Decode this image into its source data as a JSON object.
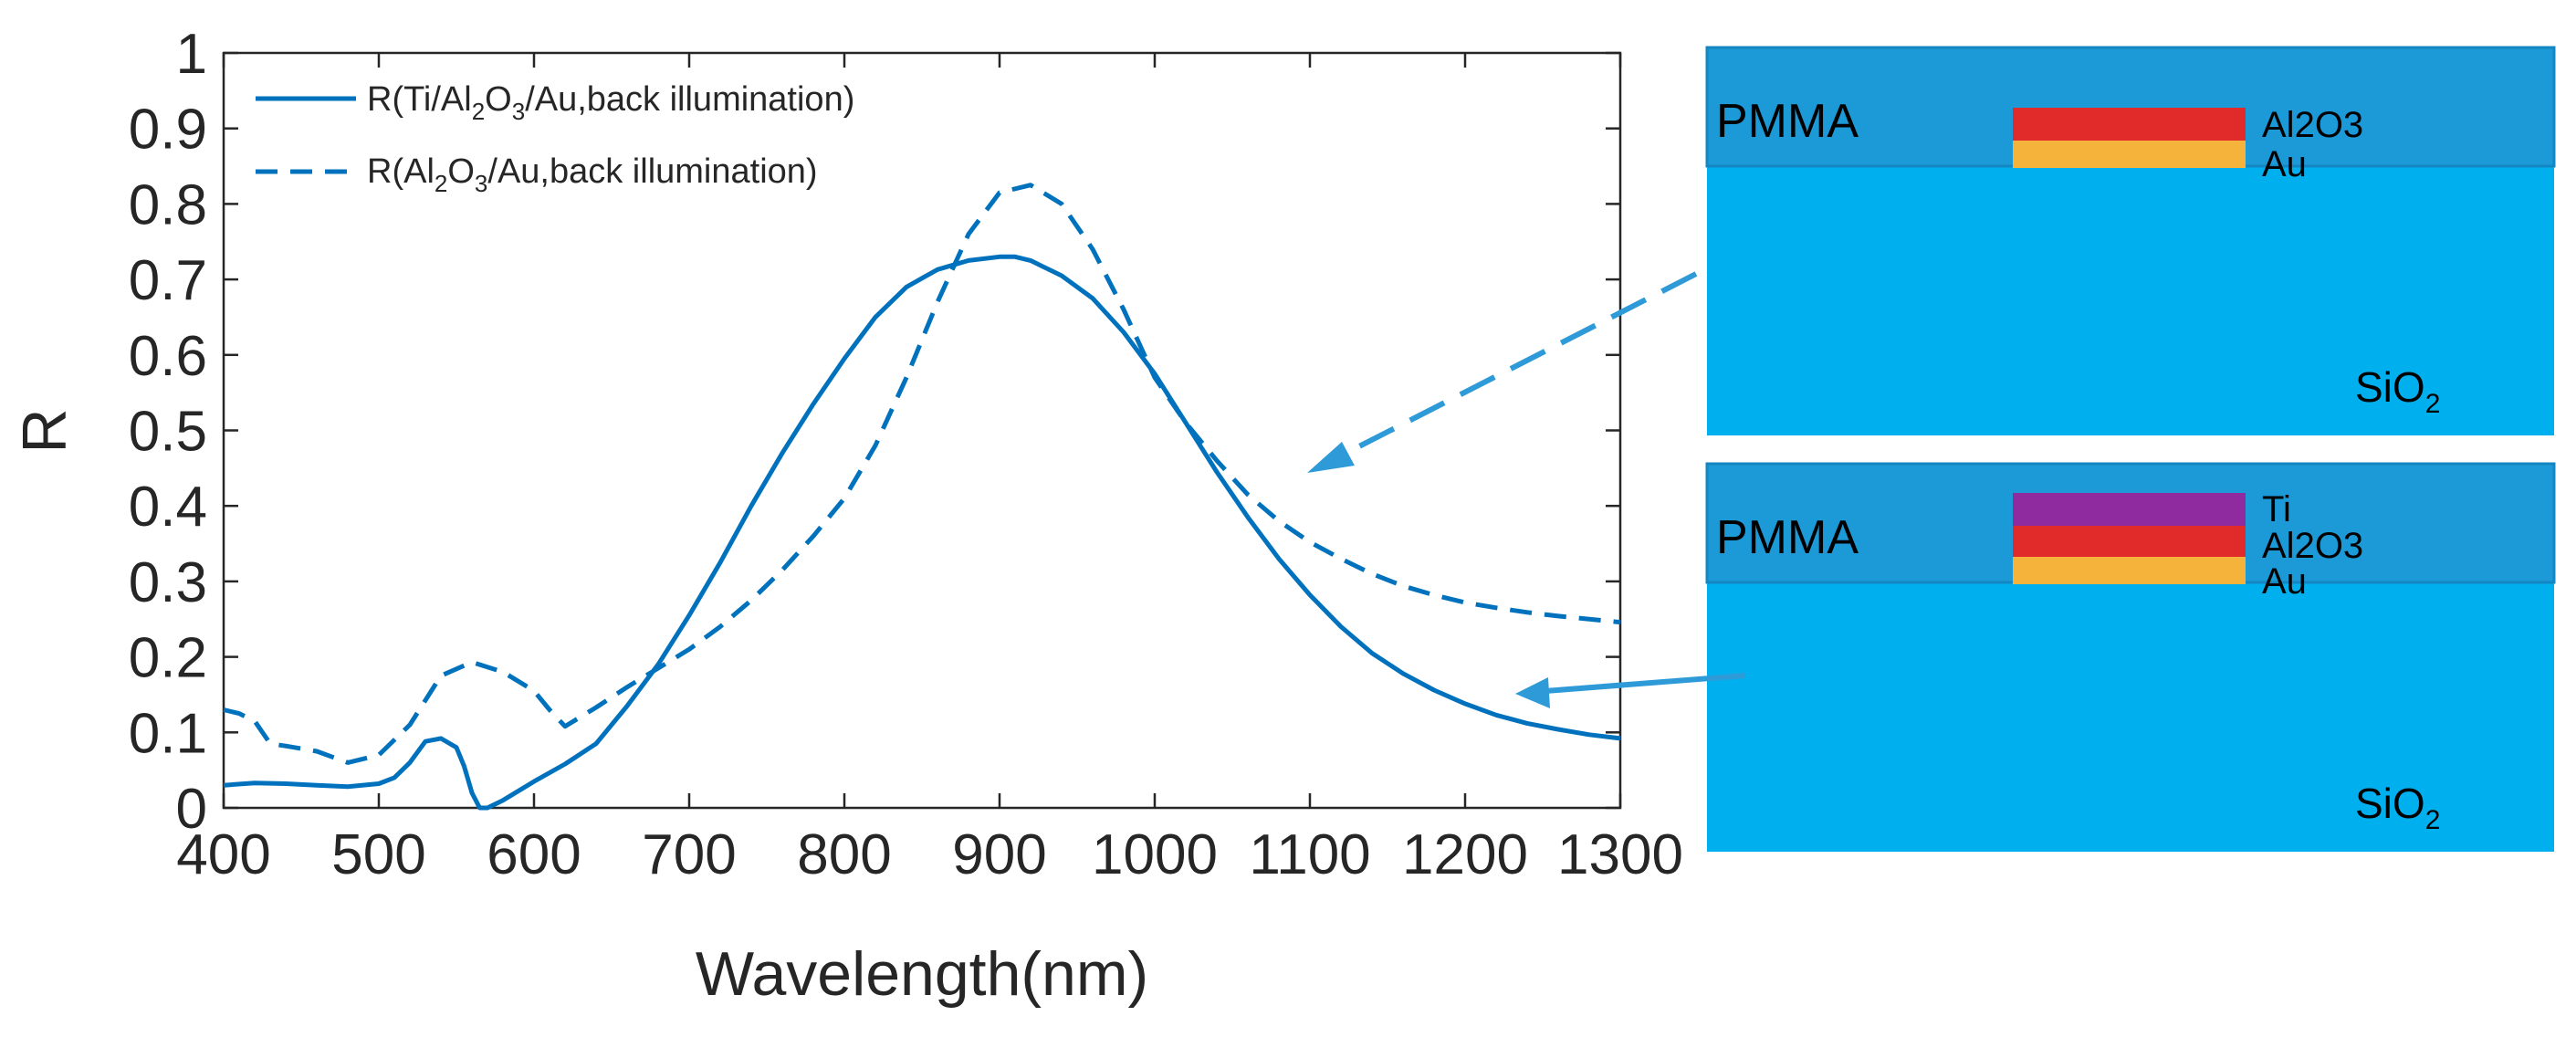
{
  "chart_data": {
    "type": "line",
    "xlabel": "Wavelength(nm)",
    "ylabel": "R",
    "xlim": [
      400,
      1300
    ],
    "ylim": [
      0,
      1
    ],
    "grid": false,
    "legend_position": "top-left",
    "x_ticks": [
      400,
      500,
      600,
      700,
      800,
      900,
      1000,
      1100,
      1200,
      1300
    ],
    "x_tick_labels": [
      "400",
      "500",
      "600",
      "700",
      "800",
      "900",
      "1000",
      "1100",
      "1200",
      "1300"
    ],
    "y_ticks": [
      0,
      0.1,
      0.2,
      0.3,
      0.4,
      0.5,
      0.6,
      0.7,
      0.8,
      0.9,
      1
    ],
    "y_tick_labels": [
      "0",
      "0.1",
      "0.2",
      "0.3",
      "0.4",
      "0.5",
      "0.6",
      "0.7",
      "0.8",
      "0.9",
      "1"
    ],
    "series": [
      {
        "name": "R(Ti/Al2O3/Au,back illumination)",
        "legend_main": "R(Ti/Al",
        "legend_sub1": "2",
        "legend_mid": "O",
        "legend_sub2": "3",
        "legend_tail": "/Au,back illumination)",
        "style": "solid",
        "color": "#0072BD",
        "x": [
          400,
          420,
          440,
          460,
          480,
          500,
          510,
          520,
          530,
          540,
          550,
          555,
          560,
          565,
          570,
          580,
          600,
          620,
          640,
          660,
          680,
          700,
          720,
          740,
          760,
          780,
          800,
          820,
          840,
          860,
          880,
          900,
          910,
          920,
          940,
          960,
          980,
          1000,
          1020,
          1040,
          1060,
          1080,
          1100,
          1120,
          1140,
          1160,
          1180,
          1200,
          1220,
          1240,
          1260,
          1280,
          1300
        ],
        "y": [
          0.03,
          0.033,
          0.032,
          0.03,
          0.028,
          0.032,
          0.04,
          0.06,
          0.088,
          0.092,
          0.08,
          0.055,
          0.02,
          0.0,
          0.0,
          0.01,
          0.035,
          0.058,
          0.085,
          0.135,
          0.19,
          0.255,
          0.325,
          0.4,
          0.47,
          0.535,
          0.595,
          0.65,
          0.69,
          0.713,
          0.725,
          0.73,
          0.73,
          0.725,
          0.705,
          0.675,
          0.63,
          0.575,
          0.51,
          0.445,
          0.385,
          0.33,
          0.282,
          0.24,
          0.205,
          0.178,
          0.156,
          0.138,
          0.123,
          0.112,
          0.104,
          0.097,
          0.092
        ]
      },
      {
        "name": "R(Al2O3/Au,back illumination)",
        "legend_main": "R(Al",
        "legend_sub1": "2",
        "legend_mid": "O",
        "legend_sub2": "3",
        "legend_tail": "/Au,back illumination)",
        "style": "dashed",
        "color": "#0072BD",
        "x": [
          400,
          410,
          420,
          430,
          440,
          460,
          480,
          500,
          520,
          540,
          560,
          580,
          600,
          610,
          620,
          640,
          660,
          680,
          700,
          720,
          740,
          760,
          780,
          800,
          820,
          840,
          860,
          880,
          900,
          920,
          940,
          960,
          980,
          1000,
          1020,
          1040,
          1060,
          1080,
          1100,
          1120,
          1140,
          1160,
          1180,
          1200,
          1220,
          1240,
          1260,
          1280,
          1300
        ],
        "y": [
          0.13,
          0.125,
          0.115,
          0.085,
          0.082,
          0.075,
          0.06,
          0.07,
          0.11,
          0.175,
          0.193,
          0.18,
          0.155,
          0.13,
          0.108,
          0.133,
          0.16,
          0.185,
          0.21,
          0.24,
          0.275,
          0.315,
          0.36,
          0.41,
          0.48,
          0.57,
          0.67,
          0.76,
          0.815,
          0.825,
          0.8,
          0.74,
          0.66,
          0.57,
          0.51,
          0.46,
          0.415,
          0.38,
          0.352,
          0.33,
          0.31,
          0.294,
          0.282,
          0.272,
          0.265,
          0.259,
          0.254,
          0.25,
          0.246
        ]
      }
    ]
  },
  "diagrams": {
    "top": {
      "pmma_label": "PMMA",
      "substrate_label_main": "SiO",
      "substrate_label_sub": "2",
      "layers": [
        {
          "label": "Al2O3",
          "color": "#E12A2A"
        },
        {
          "label": "Au",
          "color": "#F6B33C"
        }
      ]
    },
    "bottom": {
      "pmma_label": "PMMA",
      "substrate_label_main": "SiO",
      "substrate_label_sub": "2",
      "layers": [
        {
          "label": "Ti",
          "color": "#8F2B9E"
        },
        {
          "label": "Al2O3",
          "color": "#E12A2A"
        },
        {
          "label": "Au",
          "color": "#F6B33C"
        }
      ]
    },
    "colors": {
      "pmma": "#1C9AD8",
      "pmma_border": "#1487C2",
      "substrate": "#00B0EE",
      "arrow": "#2E9BD8"
    }
  }
}
